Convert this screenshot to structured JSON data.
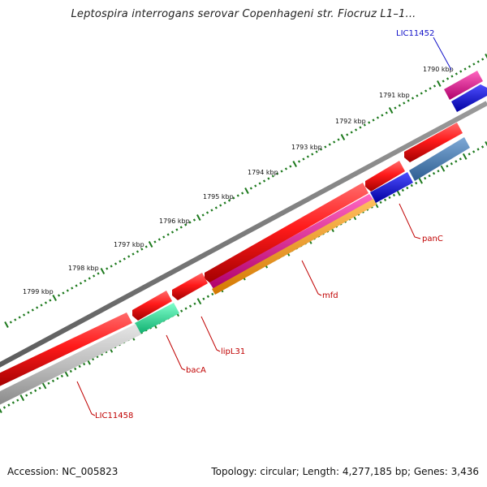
{
  "title": "Leptospira interrogans serovar Copenhageni str. Fiocruz L1–1...",
  "accession": "Accession: NC_005823",
  "topology": "Topology: circular; Length: 4,277,185 bp; Genes: 3,436",
  "kbp_labels": [
    "1790 kbp",
    "1791 kbp",
    "1792 kbp",
    "1793 kbp",
    "1794 kbp",
    "1795 kbp",
    "1796 kbp",
    "1797 kbp",
    "1798 kbp",
    "1799 kbp"
  ],
  "gene_labels": {
    "lic11452": "LIC11452",
    "panc": "panC",
    "mfd": "mfd",
    "lipl31": "lipL31",
    "baca": "bacA",
    "lic11458": "LIC11458"
  },
  "colors": {
    "cds_red": "#ee1111",
    "magenta": "#e0188f",
    "blue": "#1111dd",
    "steelblue": "#4a80b8",
    "orange": "#f39a14",
    "aqua": "#22ee99",
    "gray": "#b8b8b8",
    "backbone": "#7a7a7a",
    "ticks": "#1e7a1e",
    "label_red": "#c00000",
    "label_blue": "#1010c8"
  }
}
